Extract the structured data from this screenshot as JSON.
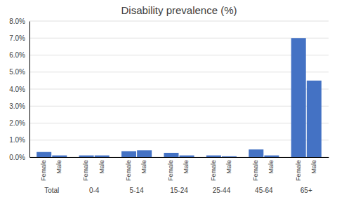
{
  "chart_data": {
    "type": "bar",
    "title": "Disability prevalence (%)",
    "categories": [
      "Total",
      "0-4",
      "5-14",
      "15-24",
      "25-44",
      "45-64",
      "65+"
    ],
    "series": [
      {
        "name": "Female",
        "color": "#4472c4",
        "values": [
          0.003,
          0.001,
          0.0035,
          0.0025,
          0.001,
          0.0045,
          0.07
        ]
      },
      {
        "name": "Male",
        "color": "#4472c4",
        "values": [
          0.001,
          0.001,
          0.004,
          0.001,
          0.0005,
          0.001,
          0.045
        ]
      }
    ],
    "ylim": [
      0,
      0.08
    ],
    "yticks": [
      {
        "value": 0.0,
        "label": "0.0%"
      },
      {
        "value": 0.01,
        "label": "1.0%"
      },
      {
        "value": 0.02,
        "label": "2.0%"
      },
      {
        "value": 0.03,
        "label": "3.0%"
      },
      {
        "value": 0.04,
        "label": "4.0%"
      },
      {
        "value": 0.05,
        "label": "5.0%"
      },
      {
        "value": 0.06,
        "label": "6.0%"
      },
      {
        "value": 0.07,
        "label": "7.0%"
      },
      {
        "value": 0.08,
        "label": "8.0%"
      }
    ],
    "grid": true
  }
}
